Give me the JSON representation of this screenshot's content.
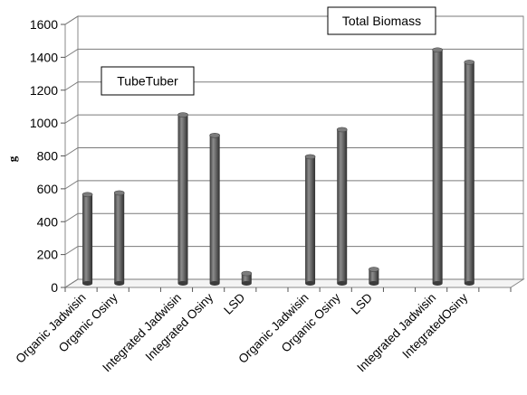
{
  "chart_data": {
    "type": "bar",
    "ylabel": "g",
    "ylim": [
      0,
      1600
    ],
    "yticks": [
      0,
      200,
      400,
      600,
      800,
      1000,
      1200,
      1400,
      1600
    ],
    "grid": true,
    "style": "3d-cylinder",
    "bar_color": "#5f5f5f",
    "categories": [
      "Organic Jadwisin",
      "Organic Osiny",
      "",
      "Integrated Jadwisin",
      "Integrated Osiny",
      "LSD",
      "",
      "Organic Jadwisin",
      "Organic Osiny",
      "LSD",
      "",
      "Integrated  Jadwisin",
      "IntegratedOsiny",
      ""
    ],
    "values": [
      540,
      550,
      null,
      1025,
      900,
      60,
      null,
      770,
      935,
      85,
      null,
      1420,
      1345,
      null
    ],
    "annotations": [
      {
        "text": "TubeTuber"
      },
      {
        "text": "Total Biomass"
      }
    ]
  }
}
